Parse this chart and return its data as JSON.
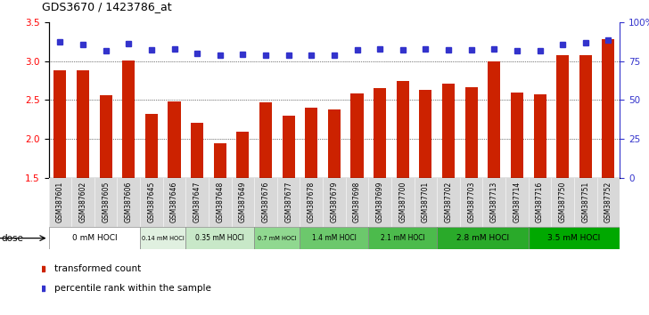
{
  "title": "GDS3670 / 1423786_at",
  "samples": [
    "GSM387601",
    "GSM387602",
    "GSM387605",
    "GSM387606",
    "GSM387645",
    "GSM387646",
    "GSM387647",
    "GSM387648",
    "GSM387649",
    "GSM387676",
    "GSM387677",
    "GSM387678",
    "GSM387679",
    "GSM387698",
    "GSM387699",
    "GSM387700",
    "GSM387701",
    "GSM387702",
    "GSM387703",
    "GSM387713",
    "GSM387714",
    "GSM387716",
    "GSM387750",
    "GSM387751",
    "GSM387752"
  ],
  "bar_values": [
    2.88,
    2.88,
    2.56,
    3.01,
    2.32,
    2.48,
    2.21,
    1.95,
    2.09,
    2.47,
    2.3,
    2.4,
    2.38,
    2.59,
    2.65,
    2.74,
    2.63,
    2.71,
    2.66,
    3.0,
    2.6,
    2.57,
    3.08,
    3.08,
    3.28
  ],
  "percentile_values": [
    3.25,
    3.21,
    3.13,
    3.22,
    3.14,
    3.16,
    3.1,
    3.08,
    3.09,
    3.08,
    3.08,
    3.08,
    3.08,
    3.14,
    3.16,
    3.14,
    3.15,
    3.14,
    3.14,
    3.15,
    3.13,
    3.13,
    3.21,
    3.23,
    3.27
  ],
  "ylim": [
    1.5,
    3.5
  ],
  "yticks": [
    1.5,
    2.0,
    2.5,
    3.0,
    3.5
  ],
  "bar_color": "#cc2200",
  "percentile_color": "#3333cc",
  "dose_groups": [
    {
      "label": "0 mM HOCl",
      "start": 0,
      "end": 4,
      "color": "#ffffff"
    },
    {
      "label": "0.14 mM HOCl",
      "start": 4,
      "end": 6,
      "color": "#e0f0e0"
    },
    {
      "label": "0.35 mM HOCl",
      "start": 6,
      "end": 9,
      "color": "#c8e8c8"
    },
    {
      "label": "0.7 mM HOCl",
      "start": 9,
      "end": 11,
      "color": "#90d890"
    },
    {
      "label": "1.4 mM HOCl",
      "start": 11,
      "end": 14,
      "color": "#6cc86c"
    },
    {
      "label": "2.1 mM HOCl",
      "start": 14,
      "end": 17,
      "color": "#4cbb4c"
    },
    {
      "label": "2.8 mM HOCl",
      "start": 17,
      "end": 21,
      "color": "#2aaa2a"
    },
    {
      "label": "3.5 mM HOCl",
      "start": 21,
      "end": 25,
      "color": "#00a800"
    }
  ],
  "right_ytick_pcts": [
    0,
    25,
    50,
    75,
    100
  ],
  "right_yticklabels": [
    "0",
    "25",
    "50",
    "75",
    "100%"
  ],
  "legend_transformed": "transformed count",
  "legend_percentile": "percentile rank within the sample"
}
